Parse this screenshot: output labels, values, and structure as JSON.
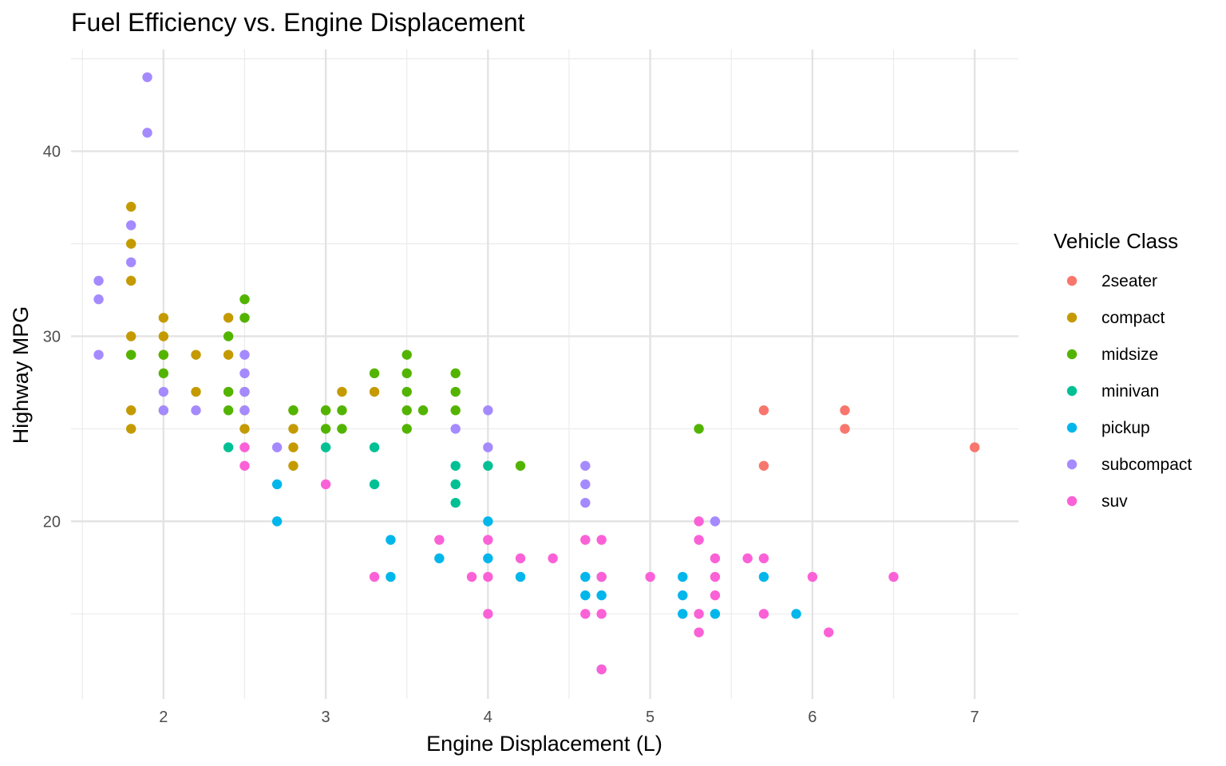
{
  "chart_data": {
    "type": "scatter",
    "title": "Fuel Efficiency vs. Engine Displacement",
    "xlabel": "Engine Displacement (L)",
    "ylabel": "Highway MPG",
    "xlim": [
      1.43,
      7.27
    ],
    "ylim": [
      10.4,
      45.5
    ],
    "xticks": [
      2,
      3,
      4,
      5,
      6,
      7
    ],
    "yticks": [
      20,
      30,
      40
    ],
    "grid": true,
    "legend": {
      "title": "Vehicle Class",
      "position": "right"
    },
    "series": [
      {
        "name": "2seater",
        "color": "#F8766D",
        "points": [
          [
            5.7,
            26
          ],
          [
            5.7,
            23
          ],
          [
            6.2,
            26
          ],
          [
            6.2,
            25
          ],
          [
            7.0,
            24
          ]
        ]
      },
      {
        "name": "compact",
        "color": "#C49A00",
        "points": [
          [
            1.8,
            37
          ],
          [
            1.8,
            35
          ],
          [
            1.8,
            33
          ],
          [
            1.8,
            30
          ],
          [
            1.8,
            29
          ],
          [
            1.8,
            26
          ],
          [
            1.8,
            25
          ],
          [
            2.0,
            31
          ],
          [
            2.0,
            30
          ],
          [
            2.0,
            29
          ],
          [
            2.0,
            26
          ],
          [
            2.2,
            29
          ],
          [
            2.2,
            27
          ],
          [
            2.4,
            31
          ],
          [
            2.4,
            29
          ],
          [
            2.4,
            27
          ],
          [
            2.5,
            27
          ],
          [
            2.5,
            26
          ],
          [
            2.5,
            25
          ],
          [
            2.8,
            26
          ],
          [
            2.8,
            25
          ],
          [
            2.8,
            24
          ],
          [
            2.8,
            23
          ],
          [
            3.0,
            26
          ],
          [
            3.1,
            27
          ],
          [
            3.3,
            27
          ]
        ]
      },
      {
        "name": "midsize",
        "color": "#53B400",
        "points": [
          [
            1.8,
            29
          ],
          [
            2.0,
            29
          ],
          [
            2.0,
            28
          ],
          [
            2.4,
            30
          ],
          [
            2.4,
            27
          ],
          [
            2.4,
            26
          ],
          [
            2.5,
            32
          ],
          [
            2.5,
            31
          ],
          [
            2.8,
            26
          ],
          [
            3.0,
            26
          ],
          [
            3.0,
            25
          ],
          [
            3.1,
            26
          ],
          [
            3.1,
            25
          ],
          [
            3.3,
            28
          ],
          [
            3.5,
            29
          ],
          [
            3.5,
            28
          ],
          [
            3.5,
            27
          ],
          [
            3.5,
            26
          ],
          [
            3.5,
            25
          ],
          [
            3.6,
            26
          ],
          [
            3.8,
            28
          ],
          [
            3.8,
            27
          ],
          [
            3.8,
            26
          ],
          [
            4.2,
            23
          ],
          [
            5.3,
            25
          ]
        ]
      },
      {
        "name": "minivan",
        "color": "#00C094",
        "points": [
          [
            2.4,
            24
          ],
          [
            3.0,
            24
          ],
          [
            3.3,
            24
          ],
          [
            3.3,
            22
          ],
          [
            3.8,
            23
          ],
          [
            3.8,
            22
          ],
          [
            3.8,
            21
          ],
          [
            4.0,
            23
          ]
        ]
      },
      {
        "name": "pickup",
        "color": "#00B6EB",
        "points": [
          [
            2.7,
            22
          ],
          [
            2.7,
            20
          ],
          [
            3.4,
            19
          ],
          [
            3.4,
            17
          ],
          [
            3.7,
            18
          ],
          [
            4.0,
            20
          ],
          [
            4.0,
            18
          ],
          [
            4.2,
            17
          ],
          [
            4.6,
            17
          ],
          [
            4.6,
            16
          ],
          [
            4.7,
            17
          ],
          [
            4.7,
            16
          ],
          [
            4.7,
            12
          ],
          [
            5.2,
            17
          ],
          [
            5.2,
            16
          ],
          [
            5.2,
            15
          ],
          [
            5.4,
            15
          ],
          [
            5.7,
            17
          ],
          [
            5.9,
            15
          ]
        ]
      },
      {
        "name": "subcompact",
        "color": "#A58AFF",
        "points": [
          [
            1.6,
            33
          ],
          [
            1.6,
            32
          ],
          [
            1.6,
            29
          ],
          [
            1.8,
            36
          ],
          [
            1.8,
            34
          ],
          [
            1.9,
            44
          ],
          [
            1.9,
            41
          ],
          [
            2.0,
            27
          ],
          [
            2.0,
            26
          ],
          [
            2.2,
            26
          ],
          [
            2.5,
            29
          ],
          [
            2.5,
            28
          ],
          [
            2.5,
            27
          ],
          [
            2.5,
            26
          ],
          [
            2.7,
            24
          ],
          [
            3.8,
            25
          ],
          [
            4.0,
            26
          ],
          [
            4.0,
            24
          ],
          [
            4.6,
            23
          ],
          [
            4.6,
            22
          ],
          [
            4.6,
            21
          ],
          [
            5.4,
            20
          ]
        ]
      },
      {
        "name": "suv",
        "color": "#FB61D7",
        "points": [
          [
            2.5,
            24
          ],
          [
            2.5,
            23
          ],
          [
            3.0,
            22
          ],
          [
            3.3,
            17
          ],
          [
            3.7,
            19
          ],
          [
            3.9,
            17
          ],
          [
            4.0,
            19
          ],
          [
            4.0,
            17
          ],
          [
            4.0,
            15
          ],
          [
            4.2,
            18
          ],
          [
            4.4,
            18
          ],
          [
            4.6,
            19
          ],
          [
            4.6,
            15
          ],
          [
            4.7,
            19
          ],
          [
            4.7,
            17
          ],
          [
            4.7,
            15
          ],
          [
            4.7,
            12
          ],
          [
            5.0,
            17
          ],
          [
            5.3,
            20
          ],
          [
            5.3,
            19
          ],
          [
            5.3,
            15
          ],
          [
            5.3,
            14
          ],
          [
            5.4,
            18
          ],
          [
            5.4,
            17
          ],
          [
            5.4,
            16
          ],
          [
            5.6,
            18
          ],
          [
            5.7,
            18
          ],
          [
            5.7,
            15
          ],
          [
            6.0,
            17
          ],
          [
            6.1,
            14
          ],
          [
            6.5,
            17
          ]
        ]
      }
    ]
  }
}
